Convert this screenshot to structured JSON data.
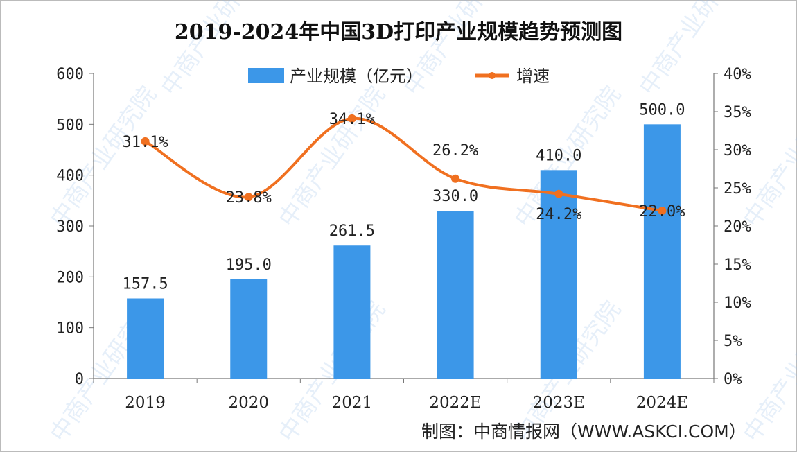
{
  "chart_data": {
    "type": "bar+line",
    "title": "2019-2024年中国3D打印产业规模趋势预测图",
    "categories": [
      "2019",
      "2020",
      "2021",
      "2022E",
      "2023E",
      "2024E"
    ],
    "series": [
      {
        "name": "产业规模（亿元）",
        "type": "bar",
        "axis": "left",
        "color": "#3c97e8",
        "values": [
          157.5,
          195.0,
          261.5,
          330.0,
          410.0,
          500.0
        ],
        "labels": [
          "157.5",
          "195.0",
          "261.5",
          "330.0",
          "410.0",
          "500.0"
        ]
      },
      {
        "name": "增速",
        "type": "line",
        "smooth": true,
        "axis": "right",
        "color": "#f07020",
        "values": [
          31.1,
          23.8,
          34.1,
          26.2,
          24.2,
          22.0
        ],
        "labels": [
          "31.1%",
          "23.8%",
          "34.1%",
          "26.2%",
          "24.2%",
          "22.0%"
        ]
      }
    ],
    "y_left": {
      "range": [
        0,
        600
      ],
      "ticks": [
        "0",
        "100",
        "200",
        "300",
        "400",
        "500",
        "600"
      ]
    },
    "y_right": {
      "range": [
        0,
        40
      ],
      "ticks": [
        "0%",
        "5%",
        "10%",
        "15%",
        "20%",
        "25%",
        "30%",
        "35%",
        "40%"
      ]
    },
    "grid": false,
    "legend": "top-center"
  },
  "source": "制图：中商情报网（WWW.ASKCI.COM）",
  "watermark": "中商产业研究院"
}
